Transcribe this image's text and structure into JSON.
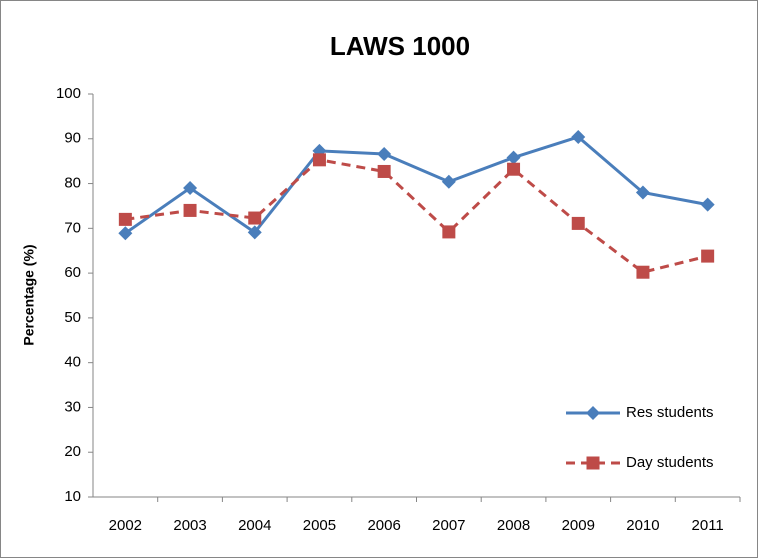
{
  "chart_data": {
    "type": "line",
    "title": "LAWS 1000",
    "y_label": "Percentage (%)",
    "categories": [
      "2002",
      "2003",
      "2004",
      "2005",
      "2006",
      "2007",
      "2008",
      "2009",
      "2010",
      "2011"
    ],
    "series": [
      {
        "name": "Res students",
        "color": "#4a7ebb",
        "marker": "diamond",
        "dash": false,
        "values": [
          68.9,
          79.0,
          69.1,
          87.3,
          86.6,
          80.4,
          85.8,
          90.4,
          78.0,
          75.3
        ]
      },
      {
        "name": "Day students",
        "color": "#be4b48",
        "marker": "square",
        "dash": true,
        "values": [
          72.0,
          74.0,
          72.3,
          85.3,
          82.7,
          69.2,
          83.2,
          71.1,
          60.2,
          63.8
        ]
      }
    ],
    "ylim": [
      10,
      100
    ],
    "yticks": [
      10,
      20,
      30,
      40,
      50,
      60,
      70,
      80,
      90,
      100
    ],
    "grid": false,
    "legend": "lower right"
  }
}
